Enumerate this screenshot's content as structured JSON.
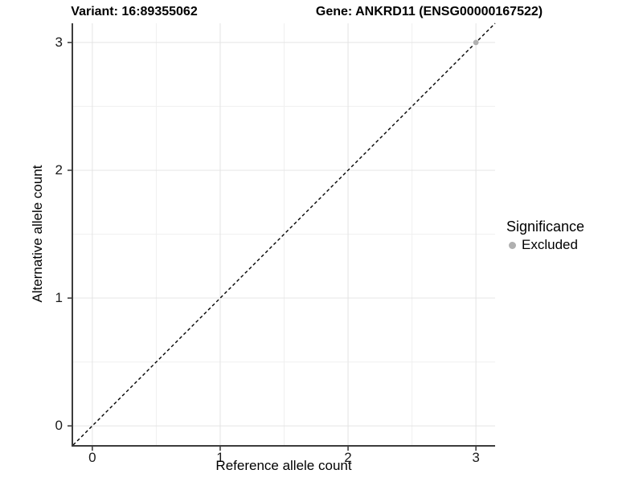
{
  "page": {
    "background": "#ffffff"
  },
  "chart_data": {
    "type": "scatter",
    "title_left": "Variant: 16:89355062",
    "title_right": "Gene: ANKRD11 (ENSG00000167522)",
    "xlabel": "Reference allele count",
    "ylabel": "Alternative allele count",
    "xlim": [
      -0.15,
      3.15
    ],
    "ylim": [
      -0.15,
      3.15
    ],
    "x_ticks": [
      0,
      1,
      2,
      3
    ],
    "y_ticks": [
      0,
      1,
      2,
      3
    ],
    "grid": {
      "major": [
        0,
        1,
        2,
        3
      ],
      "minor": [
        0.5,
        1.5,
        2.5
      ],
      "major_color": "#e4e4e4",
      "minor_color": "#f0f0f0"
    },
    "identity_line": {
      "style": "dashed",
      "from": [
        -0.15,
        -0.15
      ],
      "to": [
        3.15,
        3.15
      ],
      "color": "#000000"
    },
    "points": [
      {
        "x": 3,
        "y": 3,
        "significance": "Excluded",
        "color": "#b0b0b0"
      }
    ],
    "legend": {
      "title": "Significance",
      "position": "right",
      "entries": [
        {
          "label": "Excluded",
          "color": "#b0b0b0"
        }
      ]
    },
    "style": {
      "axis_line_color": "#3c3c3c",
      "tick_mark_color": "#333333",
      "tick_label_color": "#1a1a1a",
      "point_radius": 3.4
    }
  }
}
